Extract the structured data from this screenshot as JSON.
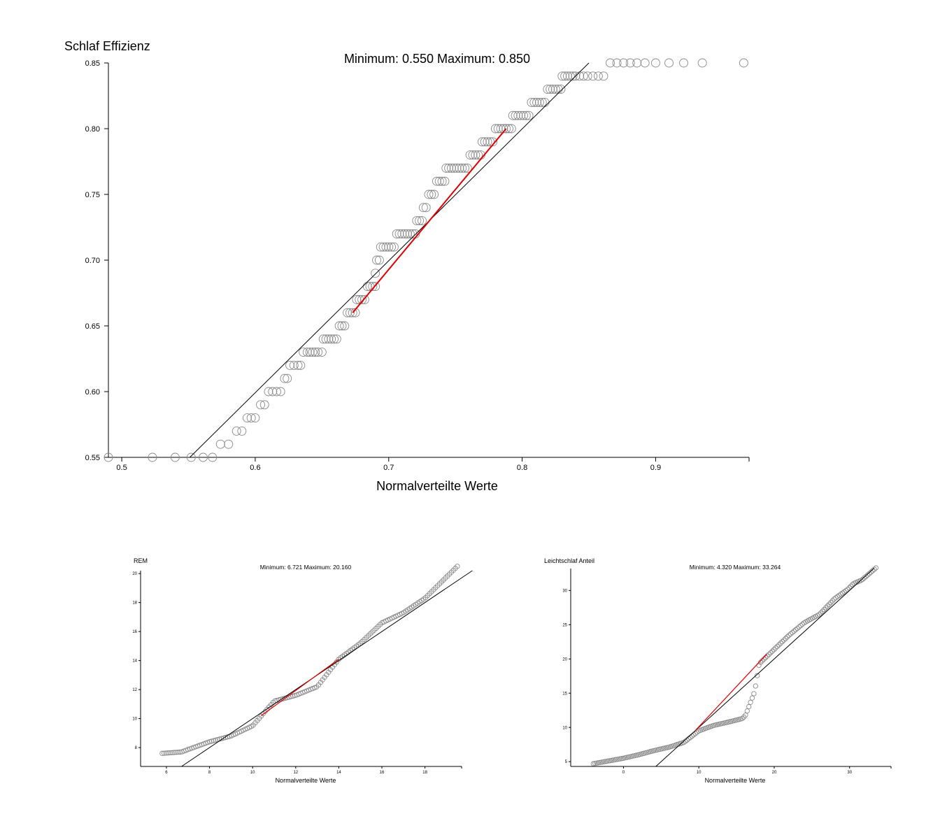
{
  "colors": {
    "points": "#888888",
    "reference_line": "#000000",
    "fit_line": "#e00000"
  },
  "chart_data": [
    {
      "type": "scatter",
      "id": "main",
      "ylabel": "Schlaf Effizienz",
      "xlabel": "Normalverteilte Werte",
      "annotation": "Minimum: 0.550 Maximum: 0.850",
      "xlim": [
        0.49,
        0.97
      ],
      "ylim": [
        0.55,
        0.85
      ],
      "x_ticks": [
        0.5,
        0.6,
        0.7,
        0.8,
        0.9
      ],
      "x_tick_labels": [
        "0.5",
        "0.6",
        "0.7",
        "0.8",
        "0.9"
      ],
      "y_ticks": [
        0.55,
        0.6,
        0.65,
        0.7,
        0.75,
        0.8,
        0.85
      ],
      "y_tick_labels": [
        "0.55",
        "0.60",
        "0.65",
        "0.70",
        "0.75",
        "0.80",
        "0.85"
      ],
      "grid": false,
      "points_by_level": [
        {
          "y": 0.55,
          "x": [
            0.49,
            0.523,
            0.54,
            0.552,
            0.561,
            0.568
          ]
        },
        {
          "y": 0.56,
          "x": [
            0.574,
            0.58
          ]
        },
        {
          "y": 0.57,
          "x": [
            0.586,
            0.59
          ]
        },
        {
          "y": 0.58,
          "x": [
            0.594,
            0.597,
            0.6
          ]
        },
        {
          "y": 0.59,
          "x": [
            0.604,
            0.607
          ]
        },
        {
          "y": 0.6,
          "x": [
            0.61,
            0.613,
            0.616,
            0.619
          ]
        },
        {
          "y": 0.61,
          "x": [
            0.622,
            0.624
          ]
        },
        {
          "y": 0.62,
          "x": [
            0.626,
            0.629,
            0.632,
            0.634
          ]
        },
        {
          "y": 0.63,
          "x": [
            0.636,
            0.639,
            0.641,
            0.643,
            0.645,
            0.647,
            0.65
          ]
        },
        {
          "y": 0.64,
          "x": [
            0.651,
            0.653,
            0.655,
            0.657,
            0.659,
            0.661
          ]
        },
        {
          "y": 0.65,
          "x": [
            0.663,
            0.665,
            0.667
          ]
        },
        {
          "y": 0.66,
          "x": [
            0.669,
            0.671,
            0.673,
            0.675
          ]
        },
        {
          "y": 0.67,
          "x": [
            0.676,
            0.678,
            0.68,
            0.682
          ]
        },
        {
          "y": 0.68,
          "x": [
            0.684,
            0.686,
            0.688,
            0.69
          ]
        },
        {
          "y": 0.69,
          "x": [
            0.69
          ]
        },
        {
          "y": 0.7,
          "x": [
            0.691,
            0.693
          ]
        },
        {
          "y": 0.71,
          "x": [
            0.694,
            0.696,
            0.698,
            0.7,
            0.702,
            0.704
          ]
        },
        {
          "y": 0.72,
          "x": [
            0.706,
            0.708,
            0.71,
            0.712,
            0.714,
            0.716,
            0.718,
            0.72
          ]
        },
        {
          "y": 0.73,
          "x": [
            0.721,
            0.723,
            0.725
          ]
        },
        {
          "y": 0.74,
          "x": [
            0.726,
            0.728
          ]
        },
        {
          "y": 0.75,
          "x": [
            0.73,
            0.732,
            0.734
          ]
        },
        {
          "y": 0.76,
          "x": [
            0.736,
            0.738,
            0.74,
            0.742
          ]
        },
        {
          "y": 0.77,
          "x": [
            0.743,
            0.745,
            0.747,
            0.749,
            0.751,
            0.753,
            0.755,
            0.757,
            0.759
          ]
        },
        {
          "y": 0.78,
          "x": [
            0.761,
            0.763,
            0.765,
            0.767,
            0.769
          ]
        },
        {
          "y": 0.79,
          "x": [
            0.77,
            0.772,
            0.774,
            0.776,
            0.778
          ]
        },
        {
          "y": 0.8,
          "x": [
            0.78,
            0.782,
            0.784,
            0.786,
            0.788,
            0.79,
            0.792
          ]
        },
        {
          "y": 0.81,
          "x": [
            0.793,
            0.795,
            0.797,
            0.799,
            0.801,
            0.803,
            0.805
          ]
        },
        {
          "y": 0.82,
          "x": [
            0.807,
            0.809,
            0.811,
            0.813,
            0.815,
            0.817
          ]
        },
        {
          "y": 0.83,
          "x": [
            0.819,
            0.821,
            0.823,
            0.825,
            0.827,
            0.829
          ]
        },
        {
          "y": 0.84,
          "x": [
            0.83,
            0.832,
            0.834,
            0.836,
            0.838,
            0.84,
            0.843,
            0.846,
            0.849,
            0.853,
            0.857,
            0.861
          ]
        },
        {
          "y": 0.85,
          "x": [
            0.866,
            0.871,
            0.876,
            0.881,
            0.886,
            0.892,
            0.9,
            0.91,
            0.921,
            0.935,
            0.966
          ]
        }
      ],
      "reference_line": {
        "x": [
          0.551,
          0.85
        ],
        "y": [
          0.55,
          0.85
        ]
      },
      "fit_line": {
        "x": [
          0.673,
          0.788
        ],
        "y": [
          0.66,
          0.8
        ]
      }
    },
    {
      "type": "scatter",
      "id": "rem",
      "ylabel": "REM",
      "xlabel": "Normalverteilte Werte",
      "annotation": "Minimum: 6.721 Maximum: 20.160",
      "xlim": [
        4.8,
        19.7
      ],
      "ylim": [
        6.7,
        20.2
      ],
      "x_ticks": [
        6,
        8,
        10,
        12,
        14,
        16,
        18
      ],
      "x_tick_labels": [
        "6",
        "8",
        "10",
        "12",
        "14",
        "16",
        "18"
      ],
      "y_ticks": [
        8,
        10,
        12,
        14,
        16,
        18,
        20
      ],
      "y_tick_labels": [
        "8",
        "10",
        "12",
        "14",
        "16",
        "18",
        "20"
      ],
      "grid": false,
      "anchors_x": [
        5.8,
        6.7,
        8.0,
        9.0,
        10.0,
        11.0,
        12.0,
        13.0,
        14.0,
        15.0,
        16.0,
        17.0,
        18.0,
        19.5
      ],
      "anchors_y": [
        7.6,
        7.7,
        8.4,
        8.8,
        9.5,
        11.2,
        11.6,
        12.2,
        14.1,
        15.2,
        16.6,
        17.3,
        18.3,
        20.5
      ],
      "n_points": 150,
      "reference_line": {
        "x": [
          6.7,
          20.2
        ],
        "y": [
          6.7,
          20.2
        ]
      },
      "fit_line": {
        "x": [
          10.4,
          14.0
        ],
        "y": [
          10.2,
          14.1
        ]
      }
    },
    {
      "type": "scatter",
      "id": "leicht",
      "ylabel": "Leichtschlaf Anteil",
      "xlabel": "Normalverteilte Werte",
      "annotation": "Minimum: 4.320 Maximum: 33.264",
      "xlim": [
        -7,
        35.5
      ],
      "ylim": [
        4.3,
        33.2
      ],
      "x_ticks": [
        0,
        10,
        20,
        30
      ],
      "x_tick_labels": [
        "0",
        "10",
        "20",
        "30"
      ],
      "y_ticks": [
        5,
        10,
        15,
        20,
        25,
        30
      ],
      "y_tick_labels": [
        "5",
        "10",
        "15",
        "20",
        "25",
        "30"
      ],
      "grid": false,
      "anchors_x": [
        -4,
        -2,
        0,
        2,
        4,
        6,
        8,
        10,
        12,
        14,
        15.8,
        16.2,
        16.8,
        17.4,
        18.0,
        20,
        22,
        24,
        26,
        28,
        29.8,
        30.5,
        31.6,
        33.5
      ],
      "anchors_y": [
        4.7,
        5.1,
        5.5,
        6.0,
        6.6,
        7.1,
        7.8,
        9.5,
        10.3,
        10.8,
        11.3,
        11.8,
        13.5,
        15.2,
        19.3,
        21.4,
        23.5,
        25.3,
        26.5,
        28.8,
        30.2,
        31.0,
        31.5,
        33.3
      ],
      "n_points": 170,
      "reference_line": {
        "x": [
          4.32,
          33.264
        ],
        "y": [
          4.32,
          33.264
        ]
      },
      "fit_line": {
        "x": [
          9.5,
          19.0
        ],
        "y": [
          9.5,
          20.7
        ]
      }
    }
  ]
}
